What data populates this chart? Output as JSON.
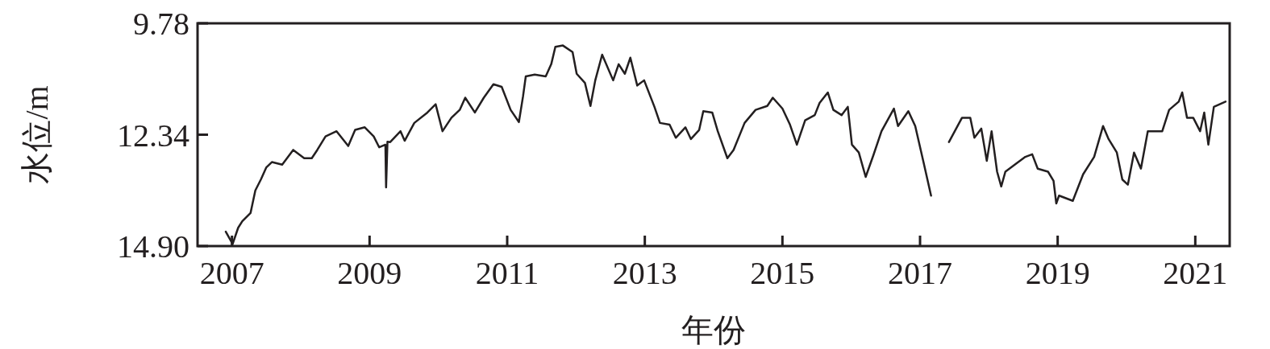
{
  "chart_data": {
    "type": "line",
    "xlabel": "年份",
    "ylabel": "水位/m",
    "xlim": [
      2006.5,
      2021.5
    ],
    "ylim": [
      14.9,
      9.78
    ],
    "xticks": [
      2007,
      2009,
      2011,
      2013,
      2015,
      2017,
      2019,
      2021
    ],
    "yticks": [
      9.78,
      12.34,
      {
        "value": 14.9,
        "label": "14.90"
      }
    ],
    "marker": "none",
    "line_style": "solid",
    "series": [
      {
        "color": "#231f20",
        "x": [
          2006.91,
          2007.01,
          2007.09,
          2007.15,
          2007.27,
          2007.34,
          2007.42,
          2007.5,
          2007.58,
          2007.73,
          2007.89,
          2008.05,
          2008.16,
          2008.24,
          2008.36,
          2008.52,
          2008.69,
          2008.79,
          2008.93,
          2009.06,
          2009.14,
          2009.23,
          2009.24,
          2009.26,
          2009.3,
          2009.45,
          2009.51,
          2009.65,
          2009.84,
          2009.96,
          2010.06,
          2010.19,
          2010.31,
          2010.39,
          2010.53,
          2010.66,
          2010.8,
          2010.92,
          2011.05,
          2011.17,
          2011.23,
          2011.27,
          2011.4,
          2011.56,
          2011.64,
          2011.7,
          2011.81,
          2011.95,
          2012.01,
          2012.13,
          2012.21,
          2012.28,
          2012.38,
          2012.54,
          2012.62,
          2012.71,
          2012.79,
          2012.89,
          2012.99,
          2013.14,
          2013.22,
          2013.36,
          2013.45,
          2013.59,
          2013.67,
          2013.79,
          2013.85,
          2013.98,
          2014.06,
          2014.2,
          2014.29,
          2014.45,
          2014.61,
          2014.78,
          2014.86,
          2015.0,
          2015.11,
          2015.21,
          2015.33,
          2015.47,
          2015.54,
          2015.66,
          2015.74,
          2015.86,
          2015.95,
          2016.01,
          2016.11,
          2016.21,
          2016.32,
          2016.44,
          2016.62,
          2016.68,
          2016.83,
          2016.93,
          2017.05,
          2017.16,
          2017.3,
          2017.42,
          2017.61,
          2017.73,
          2017.79,
          2017.89,
          2017.97,
          2018.04,
          2018.12,
          2018.18,
          2018.24,
          2018.4,
          2018.53,
          2018.63,
          2018.71,
          2018.86,
          2018.94,
          2018.98,
          2019.02,
          2019.22,
          2019.37,
          2019.53,
          2019.66,
          2019.74,
          2019.86,
          2019.94,
          2020.02,
          2020.11,
          2020.21,
          2020.31,
          2020.52,
          2020.62,
          2020.76,
          2020.81,
          2020.88,
          2020.97,
          2021.07,
          2021.13,
          2021.19,
          2021.27,
          2021.44
        ],
        "values": [
          14.57,
          14.85,
          14.48,
          14.33,
          14.14,
          13.62,
          13.37,
          13.09,
          12.97,
          13.03,
          12.69,
          12.88,
          12.88,
          12.69,
          12.38,
          12.26,
          12.6,
          12.23,
          12.17,
          12.38,
          12.63,
          12.57,
          13.55,
          12.5,
          12.51,
          12.26,
          12.48,
          12.07,
          11.83,
          11.64,
          12.26,
          11.95,
          11.77,
          11.49,
          11.83,
          11.49,
          11.18,
          11.24,
          11.77,
          12.05,
          11.46,
          11.0,
          10.96,
          11.0,
          10.72,
          10.32,
          10.29,
          10.44,
          10.94,
          11.15,
          11.68,
          11.09,
          10.5,
          11.09,
          10.72,
          10.94,
          10.57,
          11.21,
          11.09,
          11.7,
          12.07,
          12.11,
          12.41,
          12.17,
          12.44,
          12.23,
          11.8,
          11.83,
          12.26,
          12.88,
          12.69,
          12.07,
          11.77,
          11.68,
          11.49,
          11.74,
          12.11,
          12.57,
          12.01,
          11.89,
          11.61,
          11.37,
          11.77,
          11.89,
          11.7,
          12.57,
          12.75,
          13.31,
          12.82,
          12.26,
          11.74,
          12.14,
          11.8,
          12.14,
          12.97,
          13.74,
          null,
          12.51,
          11.95,
          11.95,
          12.41,
          12.2,
          12.94,
          12.26,
          13.19,
          13.53,
          13.19,
          13.0,
          12.85,
          12.79,
          13.12,
          13.19,
          13.4,
          13.92,
          13.74,
          13.86,
          13.25,
          12.85,
          12.14,
          12.44,
          12.75,
          13.37,
          13.49,
          12.75,
          13.12,
          12.26,
          12.26,
          11.77,
          11.58,
          11.37,
          11.95,
          11.95,
          12.26,
          11.83,
          12.57,
          11.7,
          11.58
        ]
      }
    ]
  }
}
